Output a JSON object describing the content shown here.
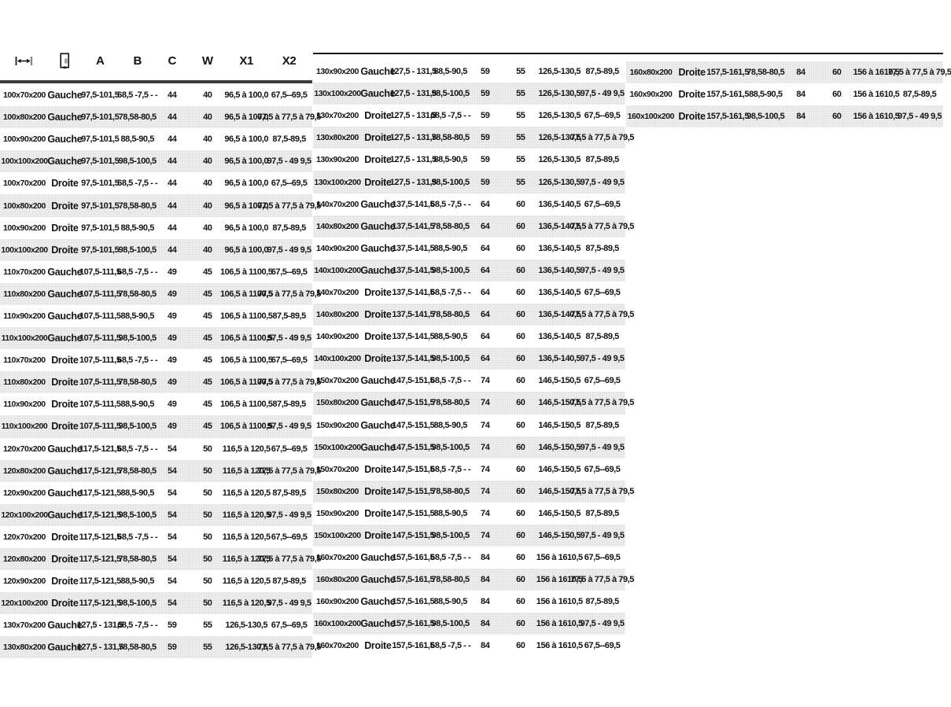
{
  "colors": {
    "background": "#ffffff",
    "stripe": "#efefef",
    "text": "#141414",
    "header_rule": "#3b3b3b",
    "top_rule": "#151515"
  },
  "header": {
    "labels": [
      "",
      "",
      "A",
      "B",
      "C",
      "W",
      "X1",
      "X2"
    ],
    "icons": [
      "width-dimension-icon",
      "door-icon"
    ]
  },
  "column_keys": [
    "size",
    "side",
    "A",
    "B",
    "C",
    "W",
    "X1",
    "X2"
  ],
  "panels": [
    {
      "name": "left",
      "stripe_offset": 0,
      "rows": [
        [
          "100x70x200",
          "Gauche",
          "97,5-101,5",
          "68,5 -7,5 - -",
          "44",
          "40",
          "96,5 à 100,0",
          "67,5--69,5"
        ],
        [
          "100x80x200",
          "Gauche",
          "97,5-101,5",
          "78,58-80,5",
          "44",
          "40",
          "96,5 à 100,0",
          "77,5 à 77,5 à 79,5"
        ],
        [
          "100x90x200",
          "Gauche",
          "97,5-101,5",
          "88,5-90,5",
          "44",
          "40",
          "96,5 à 100,0",
          "87,5-89,5"
        ],
        [
          "100x100x200",
          "Gauche",
          "97,5-101,5",
          "98,5-100,5",
          "44",
          "40",
          "96,5 à 100,0",
          "97,5 - 49 9,5"
        ],
        [
          "100x70x200",
          "Droite",
          "97,5-101,5",
          "68,5 -7,5 - -",
          "44",
          "40",
          "96,5 à 100,0",
          "67,5--69,5"
        ],
        [
          "100x80x200",
          "Droite",
          "97,5-101,5",
          "78,58-80,5",
          "44",
          "40",
          "96,5 à 100,0",
          "77,5 à 77,5 à 79,5"
        ],
        [
          "100x90x200",
          "Droite",
          "97,5-101,5",
          "88,5-90,5",
          "44",
          "40",
          "96,5 à 100,0",
          "87,5-89,5"
        ],
        [
          "100x100x200",
          "Droite",
          "97,5-101,5",
          "98,5-100,5",
          "44",
          "40",
          "96,5 à 100,0",
          "97,5 - 49 9,5"
        ],
        [
          "110x70x200",
          "Gauche",
          "107,5-111,5",
          "68,5 -7,5 - -",
          "49",
          "45",
          "106,5 à 1100,5",
          "67,5--69,5"
        ],
        [
          "110x80x200",
          "Gauche",
          "107,5-111,5",
          "78,58-80,5",
          "49",
          "45",
          "106,5 à 1100,5",
          "77,5 à 77,5 à 79,5"
        ],
        [
          "110x90x200",
          "Gauche",
          "107,5-111,5",
          "88,5-90,5",
          "49",
          "45",
          "106,5 à 1100,5",
          "87,5-89,5"
        ],
        [
          "110x100x200",
          "Gauche",
          "107,5-111,5",
          "98,5-100,5",
          "49",
          "45",
          "106,5 à 1100,5",
          "97,5 - 49 9,5"
        ],
        [
          "110x70x200",
          "Droite",
          "107,5-111,5",
          "68,5 -7,5 - -",
          "49",
          "45",
          "106,5 à 1100,5",
          "67,5--69,5"
        ],
        [
          "110x80x200",
          "Droite",
          "107,5-111,5",
          "78,58-80,5",
          "49",
          "45",
          "106,5 à 1100,5",
          "77,5 à 77,5 à 79,5"
        ],
        [
          "110x90x200",
          "Droite",
          "107,5-111,5",
          "88,5-90,5",
          "49",
          "45",
          "106,5 à 1100,5",
          "87,5-89,5"
        ],
        [
          "110x100x200",
          "Droite",
          "107,5-111,5",
          "98,5-100,5",
          "49",
          "45",
          "106,5 à 1100,5",
          "97,5 - 49 9,5"
        ],
        [
          "120x70x200",
          "Gauche",
          "117,5-121,5",
          "68,5 -7,5 - -",
          "54",
          "50",
          "116,5 à 120,5",
          "67,5--69,5"
        ],
        [
          "120x80x200",
          "Gauche",
          "117,5-121,5",
          "78,58-80,5",
          "54",
          "50",
          "116,5 à 120,5",
          "77,5 à 77,5 à 79,5"
        ],
        [
          "120x90x200",
          "Gauche",
          "117,5-121,5",
          "88,5-90,5",
          "54",
          "50",
          "116,5 à 120,5",
          "87,5-89,5"
        ],
        [
          "120x100x200",
          "Gauche",
          "117,5-121,5",
          "98,5-100,5",
          "54",
          "50",
          "116,5 à 120,5",
          "97,5 - 49 9,5"
        ],
        [
          "120x70x200",
          "Droite",
          "117,5-121,5",
          "68,5 -7,5 - -",
          "54",
          "50",
          "116,5 à 120,5",
          "67,5--69,5"
        ],
        [
          "120x80x200",
          "Droite",
          "117,5-121,5",
          "78,58-80,5",
          "54",
          "50",
          "116,5 à 120,5",
          "77,5 à 77,5 à 79,5"
        ],
        [
          "120x90x200",
          "Droite",
          "117,5-121,5",
          "88,5-90,5",
          "54",
          "50",
          "116,5 à 120,5",
          "87,5-89,5"
        ],
        [
          "120x100x200",
          "Droite",
          "117,5-121,5",
          "98,5-100,5",
          "54",
          "50",
          "116,5 à 120,5",
          "97,5 - 49 9,5"
        ],
        [
          "130x70x200",
          "Gauche",
          "127,5 - 131,5",
          "68,5 -7,5 - -",
          "59",
          "55",
          "126,5-130,5",
          "67,5--69,5"
        ],
        [
          "130x80x200",
          "Gauche",
          "127,5 - 131,5",
          "78,58-80,5",
          "59",
          "55",
          "126,5-130,5",
          "77,5 à 77,5 à 79,5"
        ]
      ]
    },
    {
      "name": "middle",
      "stripe_offset": 0,
      "rows": [
        [
          "130x90x200",
          "Gauche",
          "127,5 - 131,5",
          "88,5-90,5",
          "59",
          "55",
          "126,5-130,5",
          "87,5-89,5"
        ],
        [
          "130x100x200",
          "Gauche",
          "127,5 - 131,5",
          "98,5-100,5",
          "59",
          "55",
          "126,5-130,5",
          "97,5 - 49 9,5"
        ],
        [
          "130x70x200",
          "Droite",
          "127,5 - 131,5",
          "68,5 -7,5 - -",
          "59",
          "55",
          "126,5-130,5",
          "67,5--69,5"
        ],
        [
          "130x80x200",
          "Droite",
          "127,5 - 131,5",
          "78,58-80,5",
          "59",
          "55",
          "126,5-130,5",
          "77,5 à 77,5 à 79,5"
        ],
        [
          "130x90x200",
          "Droite",
          "127,5 - 131,5",
          "88,5-90,5",
          "59",
          "55",
          "126,5-130,5",
          "87,5-89,5"
        ],
        [
          "130x100x200",
          "Droite",
          "127,5 - 131,5",
          "98,5-100,5",
          "59",
          "55",
          "126,5-130,5",
          "97,5 - 49 9,5"
        ],
        [
          "140x70x200",
          "Gauche",
          "137,5-141,5",
          "68,5 -7,5 - -",
          "64",
          "60",
          "136,5-140,5",
          "67,5--69,5"
        ],
        [
          "140x80x200",
          "Gauche",
          "137,5-141,5",
          "78,58-80,5",
          "64",
          "60",
          "136,5-140,5",
          "77,5 à 77,5 à 79,5"
        ],
        [
          "140x90x200",
          "Gauche",
          "137,5-141,5",
          "88,5-90,5",
          "64",
          "60",
          "136,5-140,5",
          "87,5-89,5"
        ],
        [
          "140x100x200",
          "Gauche",
          "137,5-141,5",
          "98,5-100,5",
          "64",
          "60",
          "136,5-140,5",
          "97,5 - 49 9,5"
        ],
        [
          "140x70x200",
          "Droite",
          "137,5-141,5",
          "68,5 -7,5 - -",
          "64",
          "60",
          "136,5-140,5",
          "67,5--69,5"
        ],
        [
          "140x80x200",
          "Droite",
          "137,5-141,5",
          "78,58-80,5",
          "64",
          "60",
          "136,5-140,5",
          "77,5 à 77,5 à 79,5"
        ],
        [
          "140x90x200",
          "Droite",
          "137,5-141,5",
          "88,5-90,5",
          "64",
          "60",
          "136,5-140,5",
          "87,5-89,5"
        ],
        [
          "140x100x200",
          "Droite",
          "137,5-141,5",
          "98,5-100,5",
          "64",
          "60",
          "136,5-140,5",
          "97,5 - 49 9,5"
        ],
        [
          "150x70x200",
          "Gauche",
          "147,5-151,5",
          "68,5 -7,5 - -",
          "74",
          "60",
          "146,5-150,5",
          "67,5--69,5"
        ],
        [
          "150x80x200",
          "Gauche",
          "147,5-151,5",
          "78,58-80,5",
          "74",
          "60",
          "146,5-150,5",
          "77,5 à 77,5 à 79,5"
        ],
        [
          "150x90x200",
          "Gauche",
          "147,5-151,5",
          "88,5-90,5",
          "74",
          "60",
          "146,5-150,5",
          "87,5-89,5"
        ],
        [
          "150x100x200",
          "Gauche",
          "147,5-151,5",
          "98,5-100,5",
          "74",
          "60",
          "146,5-150,5",
          "97,5 - 49 9,5"
        ],
        [
          "150x70x200",
          "Droite",
          "147,5-151,5",
          "68,5 -7,5 - -",
          "74",
          "60",
          "146,5-150,5",
          "67,5--69,5"
        ],
        [
          "150x80x200",
          "Droite",
          "147,5-151,5",
          "78,58-80,5",
          "74",
          "60",
          "146,5-150,5",
          "77,5 à 77,5 à 79,5"
        ],
        [
          "150x90x200",
          "Droite",
          "147,5-151,5",
          "88,5-90,5",
          "74",
          "60",
          "146,5-150,5",
          "87,5-89,5"
        ],
        [
          "150x100x200",
          "Droite",
          "147,5-151,5",
          "98,5-100,5",
          "74",
          "60",
          "146,5-150,5",
          "97,5 - 49 9,5"
        ],
        [
          "160x70x200",
          "Gauche",
          "157,5-161,5",
          "68,5 -7,5 - -",
          "84",
          "60",
          "156 à 1610,5",
          "67,5--69,5"
        ],
        [
          "160x80x200",
          "Gauche",
          "157,5-161,5",
          "78,58-80,5",
          "84",
          "60",
          "156 à 1610,5",
          "77,5 à 77,5 à 79,5"
        ],
        [
          "160x90x200",
          "Gauche",
          "157,5-161,5",
          "88,5-90,5",
          "84",
          "60",
          "156 à 1610,5",
          "87,5-89,5"
        ],
        [
          "160x100x200",
          "Gauche",
          "157,5-161,5",
          "98,5-100,5",
          "84",
          "60",
          "156 à 1610,5",
          "97,5 - 49 9,5"
        ],
        [
          "160x70x200",
          "Droite",
          "157,5-161,5",
          "68,5 -7,5 - -",
          "84",
          "60",
          "156 à 1610,5",
          "67,5--69,5"
        ]
      ]
    },
    {
      "name": "right",
      "stripe_offset": 1,
      "rows": [
        [
          "160x80x200",
          "Droite",
          "157,5-161,5",
          "78,58-80,5",
          "84",
          "60",
          "156 à 1610,5",
          "77,5 à 77,5 à 79,5"
        ],
        [
          "160x90x200",
          "Droite",
          "157,5-161,5",
          "88,5-90,5",
          "84",
          "60",
          "156 à 1610,5",
          "87,5-89,5"
        ],
        [
          "160x100x200",
          "Droite",
          "157,5-161,5",
          "98,5-100,5",
          "84",
          "60",
          "156 à 1610,5",
          "97,5 - 49 9,5"
        ]
      ]
    }
  ]
}
